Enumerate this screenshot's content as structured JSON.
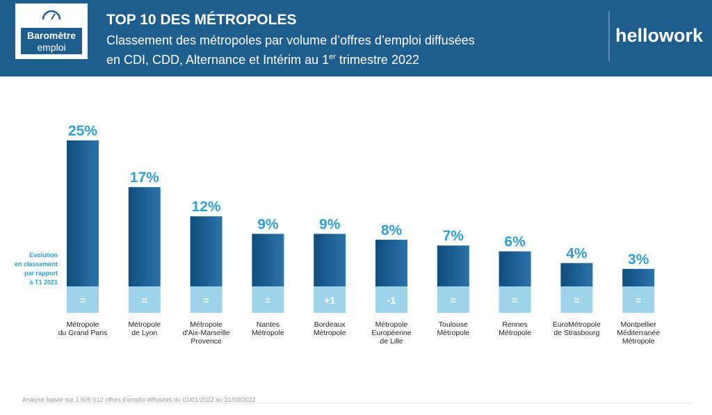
{
  "header": {
    "logo": [
      "Baromètre",
      "emploi"
    ],
    "title": "TOP 10 DES MÉTROPOLES",
    "subtitle_line1": "Classement des métropoles par volume d’offres d’emploi diffusées",
    "subtitle_line2": [
      "en CDI, CDD, Alternance et Intérim au 1",
      "er",
      " trimestre 2022"
    ],
    "brand": "hellowork"
  },
  "chart_data": {
    "type": "bar",
    "color": "#1f6396",
    "categories": [
      [
        "Métropole",
        "du Grand Paris"
      ],
      [
        "Métropole",
        "de Lyon"
      ],
      [
        "Métropole",
        "d'Aix-Marseille",
        "Provence"
      ],
      [
        "Nantes",
        "Métropole"
      ],
      [
        "Bordeaux",
        "Métropole"
      ],
      [
        "Métropole",
        "Européenne",
        "de Lille"
      ],
      [
        "Toulouse",
        "Métropole"
      ],
      [
        "Rennes",
        "Métropole"
      ],
      [
        "EuroMétropole",
        "de Strasbourg"
      ],
      [
        "Montpellier",
        "Méditerranée",
        "Métropole"
      ]
    ],
    "values": [
      25,
      17,
      12,
      9,
      9,
      8,
      7,
      6,
      4,
      3
    ],
    "value_labels": [
      "25%",
      "17%",
      "12%",
      "9%",
      "9%",
      "8%",
      "7%",
      "6%",
      "4%",
      "3%"
    ],
    "rank_changes": [
      "=",
      "=",
      "=",
      "=",
      "+1",
      "-1",
      "=",
      "=",
      "=",
      "="
    ],
    "rank_note": [
      "Evolution",
      "en classement",
      "par rapport",
      "à T1 2021"
    ]
  },
  "footnote": "Analyse basée sur 1 605 012 offres d'emploi diffusées du 01/01/2022 au 31/03/2022"
}
